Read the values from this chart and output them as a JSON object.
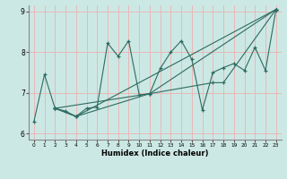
{
  "title": "",
  "xlabel": "Humidex (Indice chaleur)",
  "ylabel": "",
  "bg_color": "#cce8e4",
  "line_color": "#2d6b60",
  "grid_color": "#e8b8b8",
  "xlim": [
    -0.5,
    23.5
  ],
  "ylim": [
    5.85,
    9.15
  ],
  "yticks": [
    6,
    7,
    8,
    9
  ],
  "xticks": [
    0,
    1,
    2,
    3,
    4,
    5,
    6,
    7,
    8,
    9,
    10,
    11,
    12,
    13,
    14,
    15,
    16,
    17,
    18,
    19,
    20,
    21,
    22,
    23
  ],
  "series": [
    [
      [
        0,
        6.3
      ],
      [
        1,
        7.45
      ],
      [
        2,
        6.62
      ],
      [
        3,
        6.55
      ],
      [
        4,
        6.42
      ],
      [
        5,
        6.62
      ],
      [
        6,
        6.65
      ],
      [
        7,
        8.22
      ],
      [
        8,
        7.9
      ],
      [
        9,
        8.28
      ],
      [
        10,
        6.95
      ],
      [
        11,
        6.98
      ],
      [
        12,
        7.6
      ],
      [
        13,
        8.0
      ],
      [
        14,
        8.28
      ],
      [
        15,
        7.82
      ],
      [
        16,
        6.58
      ],
      [
        17,
        7.5
      ],
      [
        18,
        7.62
      ],
      [
        19,
        7.72
      ],
      [
        20,
        7.55
      ],
      [
        21,
        8.12
      ],
      [
        22,
        7.55
      ],
      [
        23,
        9.05
      ]
    ],
    [
      [
        2,
        6.62
      ],
      [
        4,
        6.42
      ],
      [
        23,
        9.05
      ]
    ],
    [
      [
        2,
        6.62
      ],
      [
        4,
        6.42
      ],
      [
        11,
        6.98
      ],
      [
        23,
        9.05
      ]
    ],
    [
      [
        2,
        6.62
      ],
      [
        11,
        6.98
      ],
      [
        17,
        7.25
      ],
      [
        18,
        7.25
      ],
      [
        23,
        9.05
      ]
    ]
  ]
}
